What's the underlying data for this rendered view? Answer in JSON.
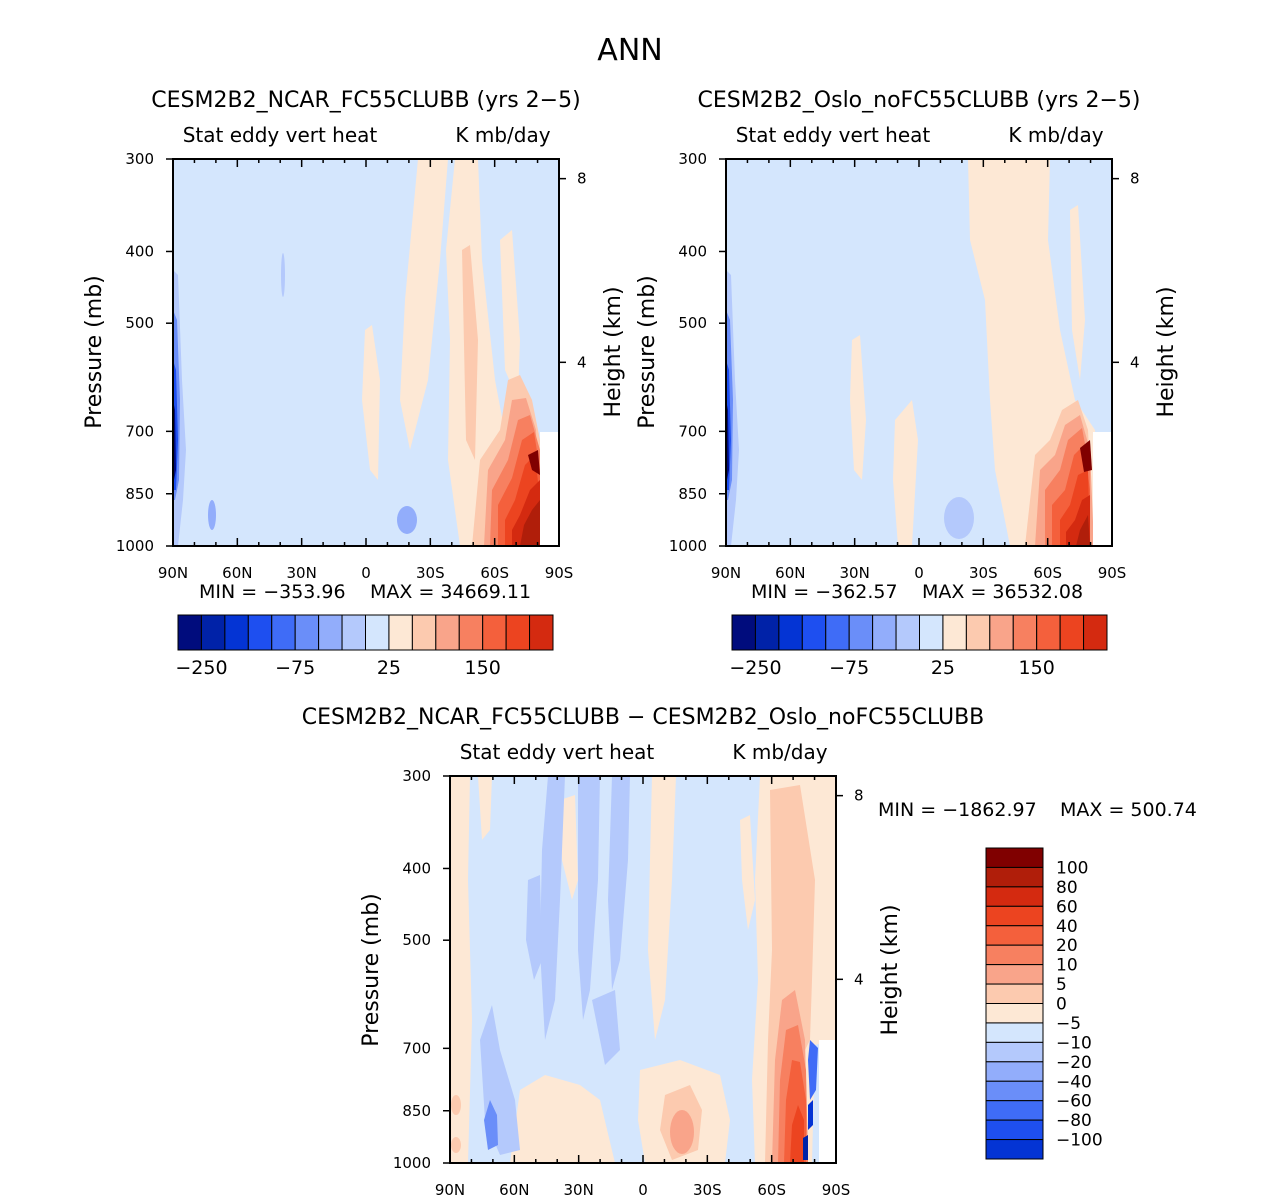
{
  "page": {
    "title": "ANN"
  },
  "colors": {
    "blues": [
      "#000c7d",
      "#0022a8",
      "#0434d4",
      "#1e4ff0",
      "#3f6cf7",
      "#6a8ef9",
      "#92adfb",
      "#b4c9fc",
      "#d4e6fd"
    ],
    "reds": [
      "#fde8d5",
      "#fccaaf",
      "#f9a48a",
      "#f78060",
      "#f4603c",
      "#ec4420",
      "#d42a10",
      "#b01e0a",
      "#800000"
    ],
    "background": "#d4e6fd"
  },
  "chart_data": [
    {
      "type": "contour",
      "id": "ncar",
      "title": "CESM2B2_NCAR_FC55CLUBB (yrs 2−5)",
      "subtitle_left": "Stat eddy vert heat",
      "subtitle_right": "K mb/day",
      "ylabel": "Pressure (mb)",
      "y2label": "Height (km)",
      "x_ticks": [
        "90N",
        "60N",
        "30N",
        "0",
        "30S",
        "60S",
        "90S"
      ],
      "x_values": [
        90,
        60,
        30,
        0,
        -30,
        -60,
        -90
      ],
      "y_ticks": [
        "300",
        "400",
        "500",
        "700",
        "850",
        "1000"
      ],
      "y_values": [
        300,
        400,
        500,
        700,
        850,
        1000
      ],
      "y2_ticks": [
        "8",
        "4"
      ],
      "y2_values": [
        8,
        4
      ],
      "min": -353.96,
      "max": 34669.11,
      "min_label": "MIN = −353.96",
      "max_label": "MAX = 34669.11",
      "colorbar_labels": [
        "−250",
        "−75",
        "25",
        "150"
      ],
      "colorbar_label_positions": [
        1,
        5,
        9,
        13
      ]
    },
    {
      "type": "contour",
      "id": "oslo",
      "title": "CESM2B2_Oslo_noFC55CLUBB (yrs 2−5)",
      "subtitle_left": "Stat eddy vert heat",
      "subtitle_right": "K mb/day",
      "ylabel": "Pressure (mb)",
      "y2label": "Height (km)",
      "x_ticks": [
        "90N",
        "60N",
        "30N",
        "0",
        "30S",
        "60S",
        "90S"
      ],
      "x_values": [
        90,
        60,
        30,
        0,
        -30,
        -60,
        -90
      ],
      "y_ticks": [
        "300",
        "400",
        "500",
        "700",
        "850",
        "1000"
      ],
      "y_values": [
        300,
        400,
        500,
        700,
        850,
        1000
      ],
      "y2_ticks": [
        "8",
        "4"
      ],
      "y2_values": [
        8,
        4
      ],
      "min": -362.57,
      "max": 36532.08,
      "min_label": "MIN = −362.57",
      "max_label": "MAX = 36532.08",
      "colorbar_labels": [
        "−250",
        "−75",
        "25",
        "150"
      ],
      "colorbar_label_positions": [
        1,
        5,
        9,
        13
      ]
    },
    {
      "type": "contour",
      "id": "diff",
      "title": "CESM2B2_NCAR_FC55CLUBB − CESM2B2_Oslo_noFC55CLUBB",
      "subtitle_left": "Stat eddy vert heat",
      "subtitle_right": "K mb/day",
      "ylabel": "Pressure (mb)",
      "y2label": "Height (km)",
      "x_ticks": [
        "90N",
        "60N",
        "30N",
        "0",
        "30S",
        "60S",
        "90S"
      ],
      "x_values": [
        90,
        60,
        30,
        0,
        -30,
        -60,
        -90
      ],
      "y_ticks": [
        "300",
        "400",
        "500",
        "700",
        "850",
        "1000"
      ],
      "y_values": [
        300,
        400,
        500,
        700,
        850,
        1000
      ],
      "y2_ticks": [
        "8",
        "4"
      ],
      "y2_values": [
        8,
        4
      ],
      "min": -1862.97,
      "max": 500.74,
      "min_label": "MIN = −1862.97",
      "max_label": "MAX = 500.74",
      "colorbar_labels": [
        "100",
        "80",
        "60",
        "40",
        "20",
        "10",
        "5",
        "0",
        "−5",
        "−10",
        "−20",
        "−40",
        "−60",
        "−80",
        "−100"
      ]
    }
  ]
}
